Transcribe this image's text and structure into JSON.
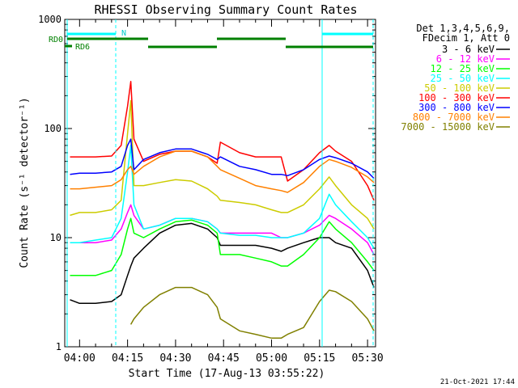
{
  "chart_data": {
    "type": "line",
    "title": "RHESSI Observing Summary Count Rates",
    "xlabel": "Start Time (17-Aug-13 03:55:22)",
    "ylabel": "Count Rate (s⁻¹ detector⁻¹)",
    "yscale": "log",
    "ylim": [
      1,
      1000
    ],
    "xlim": [
      "03:55:22",
      "05:32:30"
    ],
    "x_ticks": [
      "04:00",
      "04:15",
      "04:30",
      "04:45",
      "05:00",
      "05:15",
      "05:30"
    ],
    "y_ticks": [
      "1",
      "10",
      "100",
      "1000"
    ],
    "legend_header": [
      "Det 1,3,4,5,6,9,",
      "FDecim 1, Att 0"
    ],
    "legend_position": "right",
    "annotations": {
      "rd0": "RD0",
      "rd6": "RD6",
      "night": "N"
    },
    "footer": "21-Oct-2021 17:44",
    "x": [
      "03:57",
      "04:00",
      "04:05",
      "04:10",
      "04:13",
      "04:15",
      "04:16",
      "04:17",
      "04:20",
      "04:25",
      "04:30",
      "04:35",
      "04:40",
      "04:43",
      "04:44",
      "04:50",
      "04:55",
      "05:00",
      "05:03",
      "05:05",
      "05:10",
      "05:15",
      "05:18",
      "05:20",
      "05:25",
      "05:30",
      "05:32"
    ],
    "series": [
      {
        "name": "3 - 6 keV",
        "color": "#000000",
        "values": [
          2.7,
          2.5,
          2.5,
          2.6,
          3.0,
          4.5,
          5.5,
          6.5,
          8,
          11,
          13,
          13.5,
          12,
          10,
          8.5,
          8.5,
          8.5,
          8,
          7.5,
          8,
          9,
          10,
          10,
          9,
          8,
          5,
          3.5
        ]
      },
      {
        "name": "6 - 12 keV",
        "color": "#ff00ff",
        "values": [
          9,
          9,
          9,
          9.5,
          12,
          17,
          20,
          16,
          12,
          13,
          15,
          15,
          14,
          12,
          11,
          11,
          11,
          11,
          10,
          10,
          11,
          13,
          16,
          15,
          12,
          9,
          7
        ]
      },
      {
        "name": "12 - 25 keV",
        "color": "#00ff00",
        "values": [
          4.5,
          4.5,
          4.5,
          5,
          7,
          12,
          15,
          11,
          10,
          12,
          14,
          14.5,
          13,
          11,
          7,
          7,
          6.5,
          6,
          5.5,
          5.5,
          7,
          10,
          14,
          12,
          9,
          6,
          5
        ]
      },
      {
        "name": "25 - 50 keV",
        "color": "#00ffff",
        "values": [
          9,
          9,
          9.5,
          10,
          15,
          40,
          70,
          20,
          12,
          13,
          15,
          15,
          14,
          12,
          11,
          10.5,
          10.5,
          10,
          10,
          10,
          11,
          15,
          25,
          20,
          14,
          10,
          8
        ]
      },
      {
        "name": "50 - 100 keV",
        "color": "#cccc00",
        "values": [
          16,
          17,
          17,
          18,
          22,
          90,
          180,
          30,
          30,
          32,
          34,
          33,
          28,
          24,
          22,
          21,
          20,
          18,
          17,
          17,
          20,
          28,
          36,
          30,
          20,
          15,
          12
        ]
      },
      {
        "name": "100 - 300 keV",
        "color": "#ff0000",
        "values": [
          55,
          55,
          55,
          56,
          70,
          160,
          270,
          80,
          50,
          58,
          62,
          62,
          55,
          48,
          75,
          60,
          55,
          55,
          55,
          33,
          42,
          60,
          70,
          62,
          50,
          30,
          22
        ]
      },
      {
        "name": "300 - 800 keV",
        "color": "#0000ff",
        "values": [
          38,
          39,
          39,
          40,
          45,
          70,
          80,
          42,
          52,
          60,
          65,
          65,
          58,
          52,
          55,
          45,
          42,
          38,
          38,
          37,
          42,
          52,
          56,
          54,
          48,
          40,
          35
        ]
      },
      {
        "name": "800 - 7000 keV",
        "color": "#ff8000",
        "values": [
          28,
          28,
          29,
          30,
          34,
          42,
          45,
          38,
          45,
          55,
          62,
          62,
          55,
          45,
          42,
          35,
          30,
          28,
          27,
          26,
          32,
          45,
          52,
          50,
          44,
          36,
          32
        ]
      },
      {
        "name": "7000 - 15000 keV",
        "color": "#808000",
        "values": [
          null,
          null,
          null,
          null,
          null,
          null,
          1.6,
          1.8,
          2.3,
          3.0,
          3.5,
          3.5,
          3.0,
          2.3,
          1.8,
          1.4,
          1.3,
          1.2,
          1.2,
          1.3,
          1.5,
          2.6,
          3.3,
          3.2,
          2.6,
          1.8,
          1.4
        ]
      }
    ],
    "grid": false
  },
  "colors": {
    "axes": "#000000",
    "night_bar": "#00ffff",
    "decim_bar": "#008000"
  }
}
